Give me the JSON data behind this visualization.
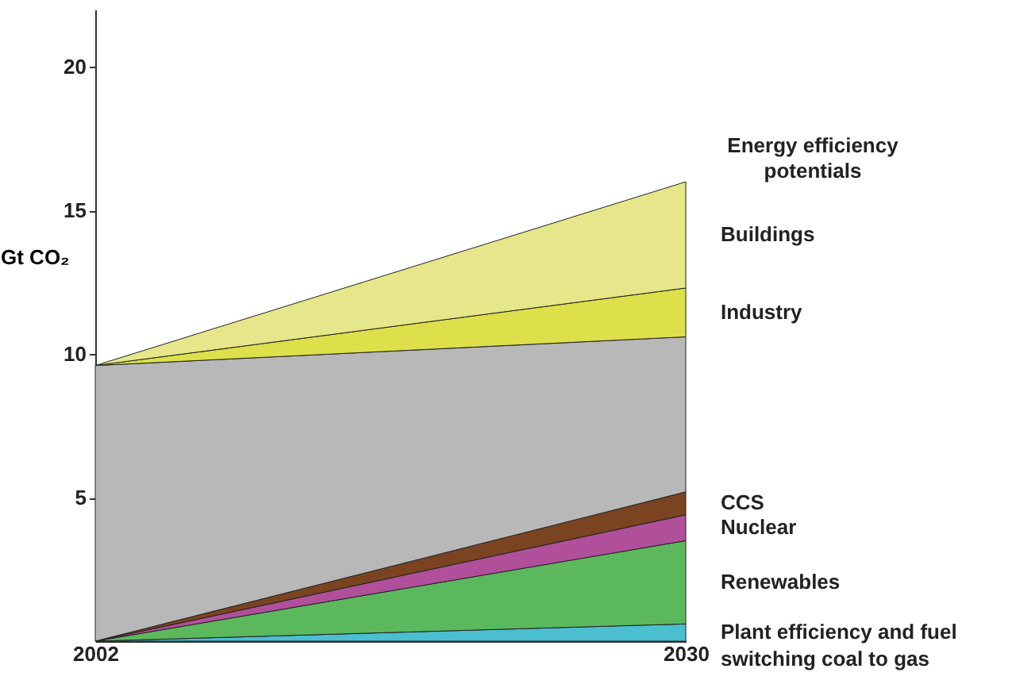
{
  "chart_data": {
    "type": "area",
    "stacked": true,
    "ylabel": "Gt CO₂",
    "x": [
      2002,
      2030
    ],
    "xlim": [
      2002,
      2030
    ],
    "xticks": [
      2002,
      2030
    ],
    "ylim": [
      0,
      22
    ],
    "yticks": [
      5,
      10,
      15,
      20
    ],
    "grid": false,
    "series": [
      {
        "name": "Plant efficiency and fuel switching coal to gas",
        "color": "#4bbfd0",
        "values": [
          0,
          0.6
        ]
      },
      {
        "name": "Renewables",
        "color": "#5cb85c",
        "values": [
          0,
          2.9
        ]
      },
      {
        "name": "Nuclear",
        "color": "#b0509a",
        "values": [
          0,
          0.9
        ]
      },
      {
        "name": "CCS",
        "color": "#7a4420",
        "values": [
          0,
          0.8
        ]
      },
      {
        "color": "#b8b8b8",
        "values": [
          9.6,
          5.4
        ]
      },
      {
        "name": "Industry",
        "color": "#dde04a",
        "values": [
          0,
          1.7
        ]
      },
      {
        "name": "Buildings",
        "color": "#e6e68a",
        "values": [
          0,
          3.7
        ]
      }
    ],
    "annotations": [
      "Energy efficiency potentials"
    ]
  }
}
